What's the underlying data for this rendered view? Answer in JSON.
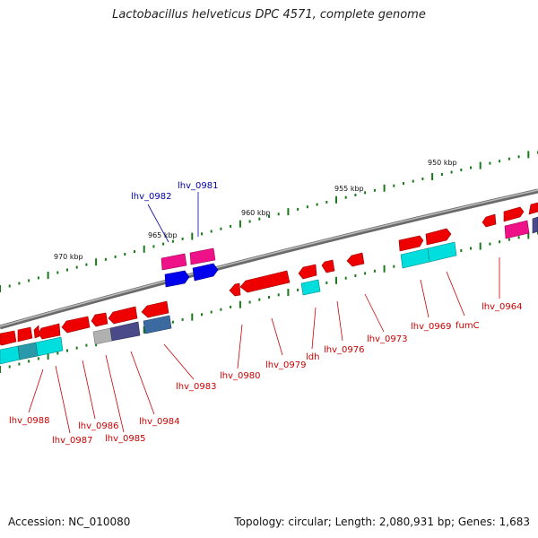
{
  "title": "Lactobacillus helveticus DPC 4571, complete genome",
  "footer": {
    "accession": "Accession: NC_010080",
    "topology": "Topology: circular; Length: 2,080,931 bp; Genes: 1,683"
  },
  "colors": {
    "backbone": "#808080",
    "cds": "#ee0000",
    "rna_magenta": "#ee1188",
    "blue": "#0000ee",
    "cyan": "#00dddd",
    "slate": "#4a4a8a",
    "steel": "#3a6aa0",
    "gray": "#b0b0b0",
    "tick": "#1a7a1a",
    "label_red": "#cc0000",
    "label_blue": "#0000aa"
  },
  "kbp_labels": [
    "970 kbp",
    "965 kbp",
    "960 kbp",
    "955 kbp",
    "950 kbp"
  ],
  "gene_labels_top": [
    "lhv_0982",
    "lhv_0981"
  ],
  "gene_labels_bottom": [
    "lhv_0988",
    "lhv_0987",
    "lhv_0986",
    "lhv_0985",
    "lhv_0984",
    "lhv_0983",
    "lhv_0980",
    "lhv_0979",
    "ldh",
    "lhv_0976",
    "lhv_0973",
    "lhv_0969",
    "fumC",
    "lhv_0964"
  ]
}
